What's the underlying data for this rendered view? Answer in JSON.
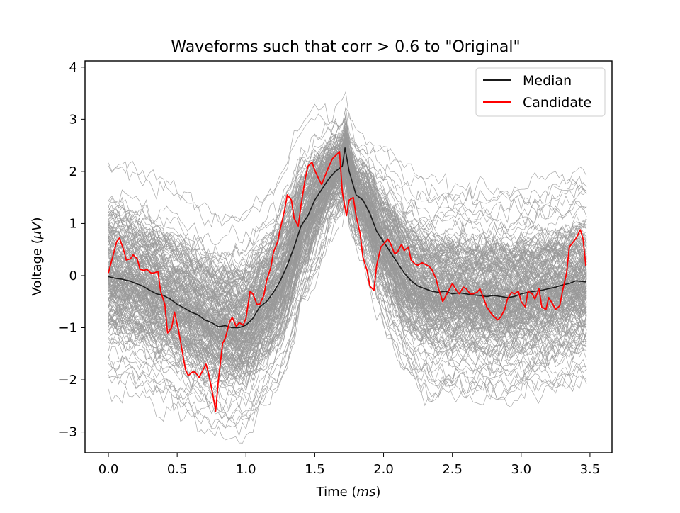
{
  "chart_data": {
    "type": "line",
    "title": "Waveforms such that corr > 0.6 to \"Original\"",
    "xlabel_prefix": "Time (",
    "xlabel_unit": "ms",
    "xlabel_suffix": ")",
    "ylabel_prefix": "Voltage (",
    "ylabel_unit": "μV",
    "ylabel_suffix": ")",
    "xlim": [
      -0.17,
      3.66
    ],
    "ylim": [
      -3.4,
      4.12
    ],
    "xticks": [
      0.0,
      0.5,
      1.0,
      1.5,
      2.0,
      2.5,
      3.0,
      3.5
    ],
    "xtick_labels": [
      "0.0",
      "0.5",
      "1.0",
      "1.5",
      "2.0",
      "2.5",
      "3.0",
      "3.5"
    ],
    "yticks": [
      -3,
      -2,
      -1,
      0,
      1,
      2,
      3,
      4
    ],
    "ytick_labels": [
      "−3",
      "−2",
      "−1",
      "0",
      "1",
      "2",
      "3",
      "4"
    ],
    "grid": false,
    "legend_position": "top-right",
    "background_waveforms": {
      "color": "#999999",
      "description_count": 200
    },
    "series": [
      {
        "name": "Median",
        "color": "#1a1a1a",
        "x": [
          0.0,
          0.05,
          0.1,
          0.15,
          0.2,
          0.25,
          0.3,
          0.35,
          0.4,
          0.45,
          0.5,
          0.55,
          0.6,
          0.65,
          0.7,
          0.75,
          0.8,
          0.85,
          0.9,
          0.95,
          1.0,
          1.05,
          1.1,
          1.15,
          1.2,
          1.25,
          1.3,
          1.35,
          1.4,
          1.45,
          1.5,
          1.55,
          1.6,
          1.65,
          1.7,
          1.72,
          1.75,
          1.8,
          1.85,
          1.9,
          1.95,
          2.0,
          2.05,
          2.1,
          2.15,
          2.2,
          2.25,
          2.3,
          2.35,
          2.4,
          2.45,
          2.5,
          2.55,
          2.6,
          2.65,
          2.7,
          2.75,
          2.8,
          2.85,
          2.9,
          2.95,
          3.0,
          3.05,
          3.1,
          3.15,
          3.2,
          3.25,
          3.3,
          3.35,
          3.4,
          3.47
        ],
        "values": [
          -0.02,
          -0.05,
          -0.07,
          -0.1,
          -0.15,
          -0.2,
          -0.28,
          -0.35,
          -0.38,
          -0.45,
          -0.55,
          -0.62,
          -0.7,
          -0.75,
          -0.85,
          -0.9,
          -0.98,
          -0.96,
          -1.0,
          -1.0,
          -0.95,
          -0.82,
          -0.6,
          -0.5,
          -0.32,
          -0.1,
          0.2,
          0.55,
          0.95,
          1.15,
          1.45,
          1.65,
          1.85,
          2.0,
          2.1,
          2.45,
          2.0,
          1.55,
          1.45,
          1.2,
          0.85,
          0.65,
          0.45,
          0.25,
          0.05,
          -0.1,
          -0.2,
          -0.25,
          -0.3,
          -0.32,
          -0.3,
          -0.35,
          -0.33,
          -0.35,
          -0.37,
          -0.38,
          -0.4,
          -0.38,
          -0.4,
          -0.42,
          -0.4,
          -0.35,
          -0.32,
          -0.3,
          -0.28,
          -0.25,
          -0.22,
          -0.18,
          -0.15,
          -0.1,
          -0.12
        ]
      },
      {
        "name": "Candidate",
        "color": "#ff0000",
        "x": [
          0.0,
          0.03,
          0.06,
          0.08,
          0.11,
          0.13,
          0.16,
          0.18,
          0.21,
          0.23,
          0.26,
          0.28,
          0.31,
          0.33,
          0.36,
          0.38,
          0.41,
          0.43,
          0.46,
          0.48,
          0.51,
          0.53,
          0.56,
          0.58,
          0.61,
          0.63,
          0.66,
          0.68,
          0.71,
          0.73,
          0.76,
          0.78,
          0.8,
          0.83,
          0.85,
          0.88,
          0.9,
          0.93,
          0.95,
          0.98,
          1.0,
          1.03,
          1.05,
          1.08,
          1.1,
          1.13,
          1.15,
          1.18,
          1.2,
          1.23,
          1.25,
          1.28,
          1.3,
          1.33,
          1.35,
          1.38,
          1.4,
          1.43,
          1.45,
          1.48,
          1.5,
          1.53,
          1.55,
          1.58,
          1.6,
          1.63,
          1.65,
          1.68,
          1.7,
          1.73,
          1.75,
          1.78,
          1.8,
          1.83,
          1.85,
          1.88,
          1.9,
          1.93,
          1.95,
          1.98,
          2.0,
          2.03,
          2.05,
          2.08,
          2.1,
          2.13,
          2.15,
          2.18,
          2.2,
          2.23,
          2.25,
          2.28,
          2.3,
          2.33,
          2.35,
          2.38,
          2.4,
          2.43,
          2.45,
          2.48,
          2.5,
          2.53,
          2.55,
          2.58,
          2.6,
          2.63,
          2.65,
          2.68,
          2.7,
          2.73,
          2.75,
          2.78,
          2.8,
          2.83,
          2.85,
          2.88,
          2.9,
          2.93,
          2.95,
          2.98,
          3.0,
          3.03,
          3.05,
          3.08,
          3.1,
          3.13,
          3.15,
          3.18,
          3.2,
          3.23,
          3.25,
          3.28,
          3.3,
          3.33,
          3.35,
          3.38,
          3.4,
          3.43,
          3.45,
          3.47
        ],
        "values": [
          0.05,
          0.35,
          0.65,
          0.72,
          0.5,
          0.3,
          0.32,
          0.4,
          0.32,
          0.12,
          0.1,
          0.12,
          0.05,
          0.05,
          0.08,
          -0.3,
          -0.55,
          -1.1,
          -1.0,
          -0.7,
          -1.05,
          -1.35,
          -1.8,
          -1.92,
          -1.85,
          -1.85,
          -1.95,
          -1.85,
          -1.7,
          -1.9,
          -2.3,
          -2.6,
          -2.0,
          -1.3,
          -1.2,
          -0.9,
          -0.8,
          -0.98,
          -0.9,
          -0.95,
          -0.82,
          -0.3,
          -0.35,
          -0.55,
          -0.55,
          -0.38,
          -0.1,
          0.15,
          0.45,
          0.65,
          0.9,
          1.25,
          1.55,
          1.45,
          1.1,
          0.95,
          1.35,
          1.85,
          2.1,
          2.18,
          2.02,
          1.85,
          1.75,
          1.95,
          2.08,
          2.25,
          2.3,
          2.38,
          1.6,
          1.15,
          1.45,
          1.5,
          1.15,
          0.8,
          0.35,
          0.1,
          -0.2,
          -0.28,
          0.2,
          0.55,
          0.6,
          0.7,
          0.62,
          0.42,
          0.45,
          0.6,
          0.48,
          0.55,
          0.3,
          0.22,
          0.2,
          0.25,
          0.22,
          0.18,
          0.12,
          -0.05,
          -0.25,
          -0.5,
          -0.4,
          -0.25,
          -0.15,
          -0.28,
          -0.35,
          -0.22,
          -0.25,
          -0.35,
          -0.35,
          -0.32,
          -0.25,
          -0.45,
          -0.6,
          -0.72,
          -0.78,
          -0.85,
          -0.8,
          -0.65,
          -0.45,
          -0.32,
          -0.35,
          -0.3,
          -0.5,
          -0.6,
          -0.3,
          -0.35,
          -0.45,
          -0.25,
          -0.6,
          -0.65,
          -0.42,
          -0.55,
          -0.65,
          -0.58,
          -0.3,
          0.05,
          0.55,
          0.65,
          0.72,
          0.88,
          0.7,
          0.18
        ]
      }
    ]
  }
}
